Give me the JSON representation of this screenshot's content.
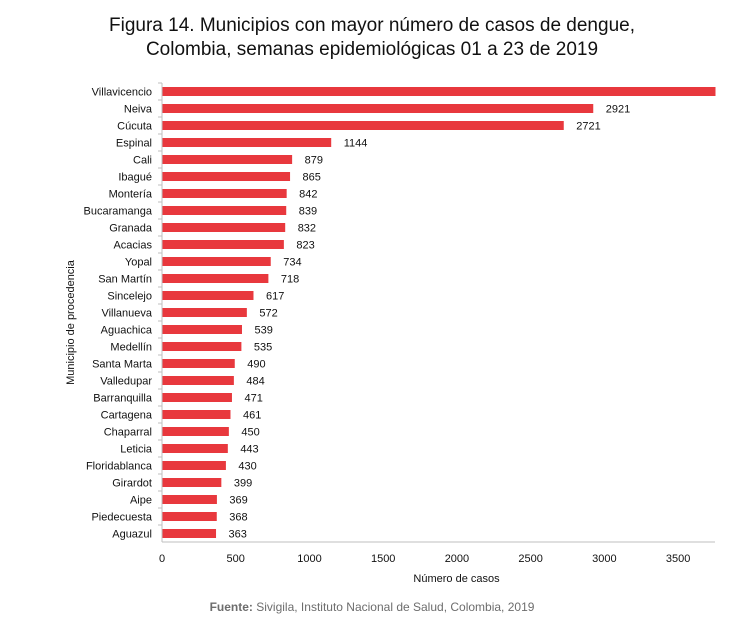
{
  "title_line1": "Figura 14. Municipios con mayor número de casos de dengue,",
  "title_line2": "Colombia, semanas epidemiológicas 01 a 23 de 2019",
  "source_label": "Fuente:",
  "source_text": "Sivigila, Instituto Nacional de Salud, Colombia, 2019",
  "colors": {
    "bar": "#e8383d",
    "axis": "#bfbfbf"
  },
  "chart_data": {
    "type": "bar",
    "orientation": "horizontal",
    "title": "Figura 14. Municipios con mayor número de casos de dengue, Colombia, semanas epidemiológicas 01 a 23 de 2019",
    "xlabel": "Número de casos",
    "ylabel": "Municipio de procedencia",
    "xlim": [
      0,
      3750
    ],
    "xticks": [
      0,
      500,
      1000,
      1500,
      2000,
      2500,
      3000,
      3500
    ],
    "grid": false,
    "categories": [
      "Villavicencio",
      "Neiva",
      "Cúcuta",
      "Espinal",
      "Cali",
      "Ibagué",
      "Montería",
      "Bucaramanga",
      "Granada",
      "Acacias",
      "Yopal",
      "San Martín",
      "Sincelejo",
      "Villanueva",
      "Aguachica",
      "Medellín",
      "Santa Marta",
      "Valledupar",
      "Barranquilla",
      "Cartagena",
      "Chaparral",
      "Leticia",
      "Floridablanca",
      "Girardot",
      "Aipe",
      "Piedecuesta",
      "Aguazul"
    ],
    "values": [
      3760,
      2921,
      2721,
      1144,
      879,
      865,
      842,
      839,
      832,
      823,
      734,
      718,
      617,
      572,
      539,
      535,
      490,
      484,
      471,
      461,
      450,
      443,
      430,
      399,
      369,
      368,
      363
    ],
    "data_labels": [
      "",
      "2921",
      "2721",
      "1144",
      "879",
      "865",
      "842",
      "839",
      "832",
      "823",
      "734",
      "718",
      "617",
      "572",
      "539",
      "535",
      "490",
      "484",
      "471",
      "461",
      "450",
      "443",
      "430",
      "399",
      "369",
      "368",
      "363"
    ]
  }
}
